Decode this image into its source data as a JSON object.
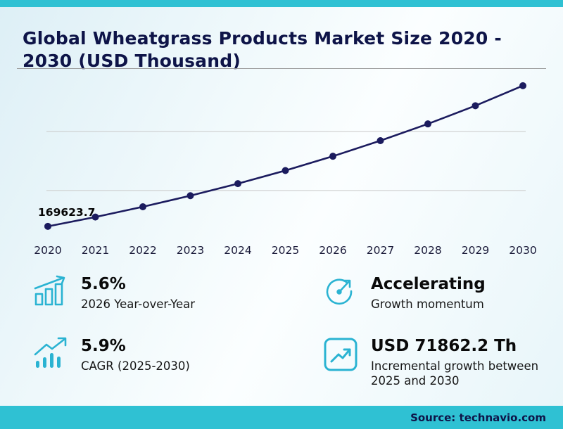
{
  "page": {
    "title": "Global Wheatgrass Products Market Size 2020 - 2030 (USD Thousand)",
    "source": "Source: technavio.com"
  },
  "colors": {
    "accent": "#2fc1d3",
    "navy": "#0e1448",
    "line": "#1b1b5e",
    "icon": "#2ab3d2",
    "gridline": "#c9c9c9"
  },
  "chart_data": {
    "type": "line",
    "title": "Global Wheatgrass Products Market Size 2020 - 2030 (USD Thousand)",
    "xlabel": "",
    "ylabel": "USD Thousand",
    "x": [
      "2020",
      "2021",
      "2022",
      "2023",
      "2024",
      "2025",
      "2026",
      "2027",
      "2028",
      "2029",
      "2030"
    ],
    "values": [
      169623.7,
      177500,
      186200,
      195600,
      205800,
      216900,
      229000,
      242200,
      256400,
      271800,
      288762.2
    ],
    "point_label": {
      "index": 0,
      "text": "169623.7"
    },
    "ylim": [
      160000,
      300000
    ],
    "gridlines": [
      200000,
      250000
    ],
    "grid": true,
    "legend": "none"
  },
  "stats": [
    {
      "id": "yoy",
      "icon": "bar-chart-growth-icon",
      "value": "5.6%",
      "label": "2026 Year-over-Year"
    },
    {
      "id": "momentum",
      "icon": "gauge-icon",
      "value": "Accelerating",
      "label": "Growth momentum"
    },
    {
      "id": "cagr",
      "icon": "trend-up-bars-icon",
      "value": "5.9%",
      "label": "CAGR (2025-2030)"
    },
    {
      "id": "incremental",
      "icon": "boxed-trend-icon",
      "value": "USD 71862.2 Th",
      "label": "Incremental growth between 2025 and 2030"
    }
  ]
}
